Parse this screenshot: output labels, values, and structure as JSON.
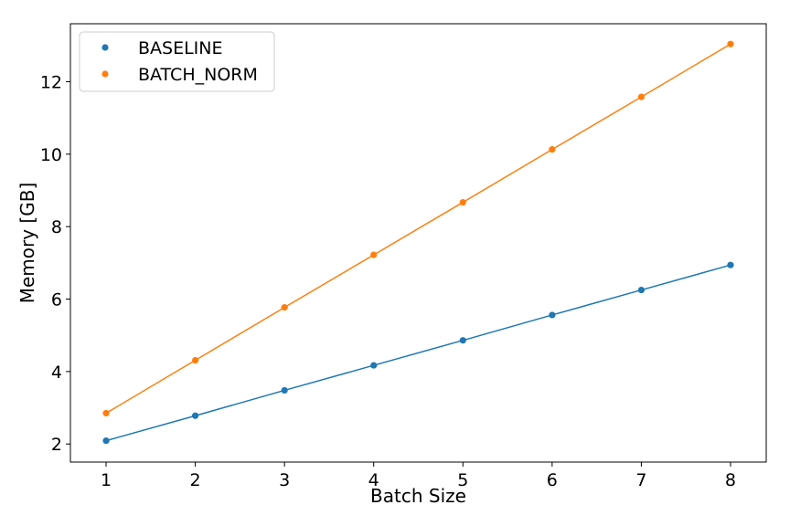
{
  "chart_data": {
    "type": "line",
    "title": "",
    "xlabel": "Batch Size",
    "ylabel": "Memory [GB]",
    "xlim": [
      0.6,
      8.4
    ],
    "ylim": [
      1.5,
      13.6
    ],
    "x_ticks": [
      1,
      2,
      3,
      4,
      5,
      6,
      7,
      8
    ],
    "y_ticks": [
      2,
      4,
      6,
      8,
      10,
      12
    ],
    "grid": false,
    "legend_position": "top-left",
    "x": [
      1,
      2,
      3,
      4,
      5,
      6,
      7,
      8
    ],
    "series": [
      {
        "name": "BASELINE",
        "color": "#1f77b4",
        "values": [
          2.09,
          2.78,
          3.48,
          4.17,
          4.86,
          5.56,
          6.25,
          6.94
        ]
      },
      {
        "name": "BATCH_NORM",
        "color": "#ff7f0e",
        "values": [
          2.85,
          4.31,
          5.77,
          7.22,
          8.67,
          10.13,
          11.58,
          13.04
        ]
      }
    ]
  }
}
